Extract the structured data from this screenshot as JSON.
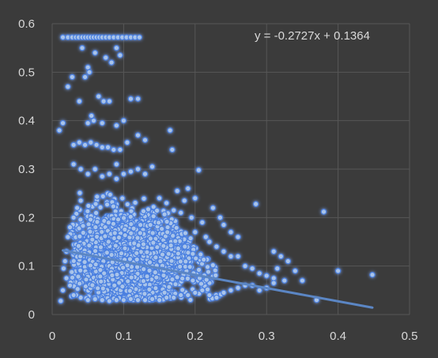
{
  "chart_data": {
    "type": "scatter",
    "title": "",
    "xlabel": "",
    "ylabel": "",
    "xlim": [
      0,
      0.5
    ],
    "ylim": [
      0,
      0.6
    ],
    "x_ticks": [
      0,
      0.1,
      0.2,
      0.3,
      0.4,
      0.5
    ],
    "x_tick_labels": [
      "0",
      "0.1",
      "0.2",
      "0.3",
      "0.4",
      "0.5"
    ],
    "y_ticks": [
      0,
      0.1,
      0.2,
      0.3,
      0.4,
      0.5,
      0.6
    ],
    "y_tick_labels": [
      "0",
      "0.1",
      "0.2",
      "0.3",
      "0.4",
      "0.5",
      "0.6"
    ],
    "grid": true,
    "legend": "none",
    "trendline": {
      "equation": "y = -0.2727x  + 0.1364",
      "slope": -0.2727,
      "intercept": 0.1364,
      "x_range": [
        0.015,
        0.448
      ]
    },
    "marker_color": "#a9c4ea",
    "glow_color": "#4a7fe0",
    "trend_color": "#5b86c4",
    "series": [
      {
        "points": [
          [
            0.015,
            0.572
          ],
          [
            0.022,
            0.572
          ],
          [
            0.028,
            0.572
          ],
          [
            0.033,
            0.572
          ],
          [
            0.037,
            0.572
          ],
          [
            0.042,
            0.572
          ],
          [
            0.046,
            0.572
          ],
          [
            0.05,
            0.572
          ],
          [
            0.054,
            0.572
          ],
          [
            0.058,
            0.572
          ],
          [
            0.062,
            0.572
          ],
          [
            0.066,
            0.572
          ],
          [
            0.07,
            0.572
          ],
          [
            0.075,
            0.572
          ],
          [
            0.08,
            0.572
          ],
          [
            0.086,
            0.572
          ],
          [
            0.092,
            0.572
          ],
          [
            0.098,
            0.572
          ],
          [
            0.104,
            0.572
          ],
          [
            0.11,
            0.572
          ],
          [
            0.116,
            0.572
          ],
          [
            0.122,
            0.572
          ],
          [
            0.042,
            0.55
          ],
          [
            0.05,
            0.51
          ],
          [
            0.046,
            0.49
          ],
          [
            0.052,
            0.5
          ],
          [
            0.06,
            0.54
          ],
          [
            0.075,
            0.53
          ],
          [
            0.09,
            0.55
          ],
          [
            0.095,
            0.535
          ],
          [
            0.083,
            0.52
          ],
          [
            0.01,
            0.38
          ],
          [
            0.015,
            0.395
          ],
          [
            0.022,
            0.47
          ],
          [
            0.028,
            0.49
          ],
          [
            0.038,
            0.44
          ],
          [
            0.055,
            0.41
          ],
          [
            0.065,
            0.45
          ],
          [
            0.072,
            0.44
          ],
          [
            0.08,
            0.44
          ],
          [
            0.11,
            0.445
          ],
          [
            0.12,
            0.445
          ],
          [
            0.05,
            0.395
          ],
          [
            0.058,
            0.4
          ],
          [
            0.07,
            0.395
          ],
          [
            0.09,
            0.39
          ],
          [
            0.1,
            0.4
          ],
          [
            0.165,
            0.38
          ],
          [
            0.168,
            0.34
          ],
          [
            0.13,
            0.36
          ],
          [
            0.12,
            0.37
          ],
          [
            0.14,
            0.305
          ],
          [
            0.09,
            0.31
          ],
          [
            0.095,
            0.34
          ],
          [
            0.105,
            0.355
          ],
          [
            0.03,
            0.35
          ],
          [
            0.038,
            0.355
          ],
          [
            0.046,
            0.35
          ],
          [
            0.054,
            0.355
          ],
          [
            0.062,
            0.35
          ],
          [
            0.07,
            0.345
          ],
          [
            0.078,
            0.345
          ],
          [
            0.086,
            0.34
          ],
          [
            0.03,
            0.31
          ],
          [
            0.04,
            0.3
          ],
          [
            0.05,
            0.29
          ],
          [
            0.06,
            0.3
          ],
          [
            0.07,
            0.285
          ],
          [
            0.08,
            0.29
          ],
          [
            0.09,
            0.28
          ],
          [
            0.1,
            0.29
          ],
          [
            0.11,
            0.295
          ],
          [
            0.12,
            0.3
          ],
          [
            0.13,
            0.29
          ],
          [
            0.205,
            0.298
          ],
          [
            0.04,
            0.235
          ],
          [
            0.035,
            0.22
          ],
          [
            0.03,
            0.2
          ],
          [
            0.025,
            0.18
          ],
          [
            0.022,
            0.16
          ],
          [
            0.02,
            0.13
          ],
          [
            0.018,
            0.11
          ],
          [
            0.016,
            0.095
          ],
          [
            0.02,
            0.075
          ],
          [
            0.025,
            0.06
          ],
          [
            0.015,
            0.05
          ],
          [
            0.012,
            0.028
          ],
          [
            0.03,
            0.04
          ],
          [
            0.04,
            0.035
          ],
          [
            0.05,
            0.03
          ],
          [
            0.06,
            0.032
          ],
          [
            0.07,
            0.03
          ],
          [
            0.08,
            0.028
          ],
          [
            0.09,
            0.03
          ],
          [
            0.1,
            0.03
          ],
          [
            0.11,
            0.032
          ],
          [
            0.12,
            0.03
          ],
          [
            0.13,
            0.03
          ],
          [
            0.14,
            0.032
          ],
          [
            0.15,
            0.03
          ],
          [
            0.16,
            0.035
          ],
          [
            0.17,
            0.035
          ],
          [
            0.18,
            0.04
          ],
          [
            0.19,
            0.04
          ],
          [
            0.2,
            0.045
          ],
          [
            0.21,
            0.05
          ],
          [
            0.22,
            0.04
          ],
          [
            0.23,
            0.035
          ],
          [
            0.24,
            0.045
          ],
          [
            0.25,
            0.05
          ],
          [
            0.26,
            0.055
          ],
          [
            0.27,
            0.06
          ],
          [
            0.28,
            0.06
          ],
          [
            0.15,
            0.24
          ],
          [
            0.16,
            0.23
          ],
          [
            0.17,
            0.215
          ],
          [
            0.18,
            0.21
          ],
          [
            0.19,
            0.26
          ],
          [
            0.2,
            0.24
          ],
          [
            0.195,
            0.2
          ],
          [
            0.21,
            0.19
          ],
          [
            0.2,
            0.17
          ],
          [
            0.215,
            0.16
          ],
          [
            0.22,
            0.15
          ],
          [
            0.23,
            0.14
          ],
          [
            0.24,
            0.13
          ],
          [
            0.25,
            0.12
          ],
          [
            0.26,
            0.12
          ],
          [
            0.27,
            0.1
          ],
          [
            0.28,
            0.095
          ],
          [
            0.29,
            0.085
          ],
          [
            0.3,
            0.08
          ],
          [
            0.31,
            0.075
          ],
          [
            0.24,
            0.185
          ],
          [
            0.25,
            0.17
          ],
          [
            0.26,
            0.16
          ],
          [
            0.225,
            0.22
          ],
          [
            0.235,
            0.2
          ],
          [
            0.175,
            0.255
          ],
          [
            0.185,
            0.235
          ],
          [
            0.285,
            0.228
          ],
          [
            0.38,
            0.212
          ],
          [
            0.31,
            0.13
          ],
          [
            0.32,
            0.12
          ],
          [
            0.33,
            0.11
          ],
          [
            0.34,
            0.09
          ],
          [
            0.315,
            0.095
          ],
          [
            0.325,
            0.07
          ],
          [
            0.35,
            0.07
          ],
          [
            0.31,
            0.065
          ],
          [
            0.29,
            0.05
          ],
          [
            0.3,
            0.055
          ],
          [
            0.37,
            0.03
          ],
          [
            0.4,
            0.09
          ],
          [
            0.448,
            0.082
          ]
        ],
        "cluster": {
          "x_min": 0.025,
          "x_max": 0.28,
          "y_min": 0.03,
          "y_max": 0.28,
          "count": 2200,
          "peak_x": 0.075,
          "peak_y": 0.12
        }
      }
    ]
  }
}
